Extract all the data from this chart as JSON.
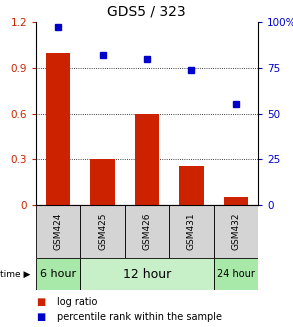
{
  "title": "GDS5 / 323",
  "categories": [
    "GSM424",
    "GSM425",
    "GSM426",
    "GSM431",
    "GSM432"
  ],
  "bar_values": [
    1.0,
    0.3,
    0.6,
    0.255,
    0.055
  ],
  "scatter_values": [
    97,
    82,
    80,
    74,
    55
  ],
  "bar_color": "#cc2200",
  "scatter_color": "#0000cc",
  "ylim_left": [
    0,
    1.2
  ],
  "ylim_right": [
    0,
    100
  ],
  "yticks_left": [
    0,
    0.3,
    0.6,
    0.9,
    1.2
  ],
  "yticks_right": [
    0,
    25,
    50,
    75,
    100
  ],
  "ytick_labels_left": [
    "0",
    "0.3",
    "0.6",
    "0.9",
    "1.2"
  ],
  "ytick_labels_right": [
    "0",
    "25",
    "50",
    "75",
    "100%"
  ],
  "gridlines_at": [
    0.3,
    0.6,
    0.9
  ],
  "legend_log_ratio": "log ratio",
  "legend_percentile": "percentile rank within the sample",
  "left_axis_color": "#cc2200",
  "right_axis_color": "#0000cc",
  "gsm_bg_color": "#d4d4d4",
  "time_6_color": "#a8e8a8",
  "time_12_color": "#c8f0c8",
  "time_24_color": "#a8e8a8",
  "time_label_6": "6 hour",
  "time_label_12": "12 hour",
  "time_label_24": "24 hour"
}
